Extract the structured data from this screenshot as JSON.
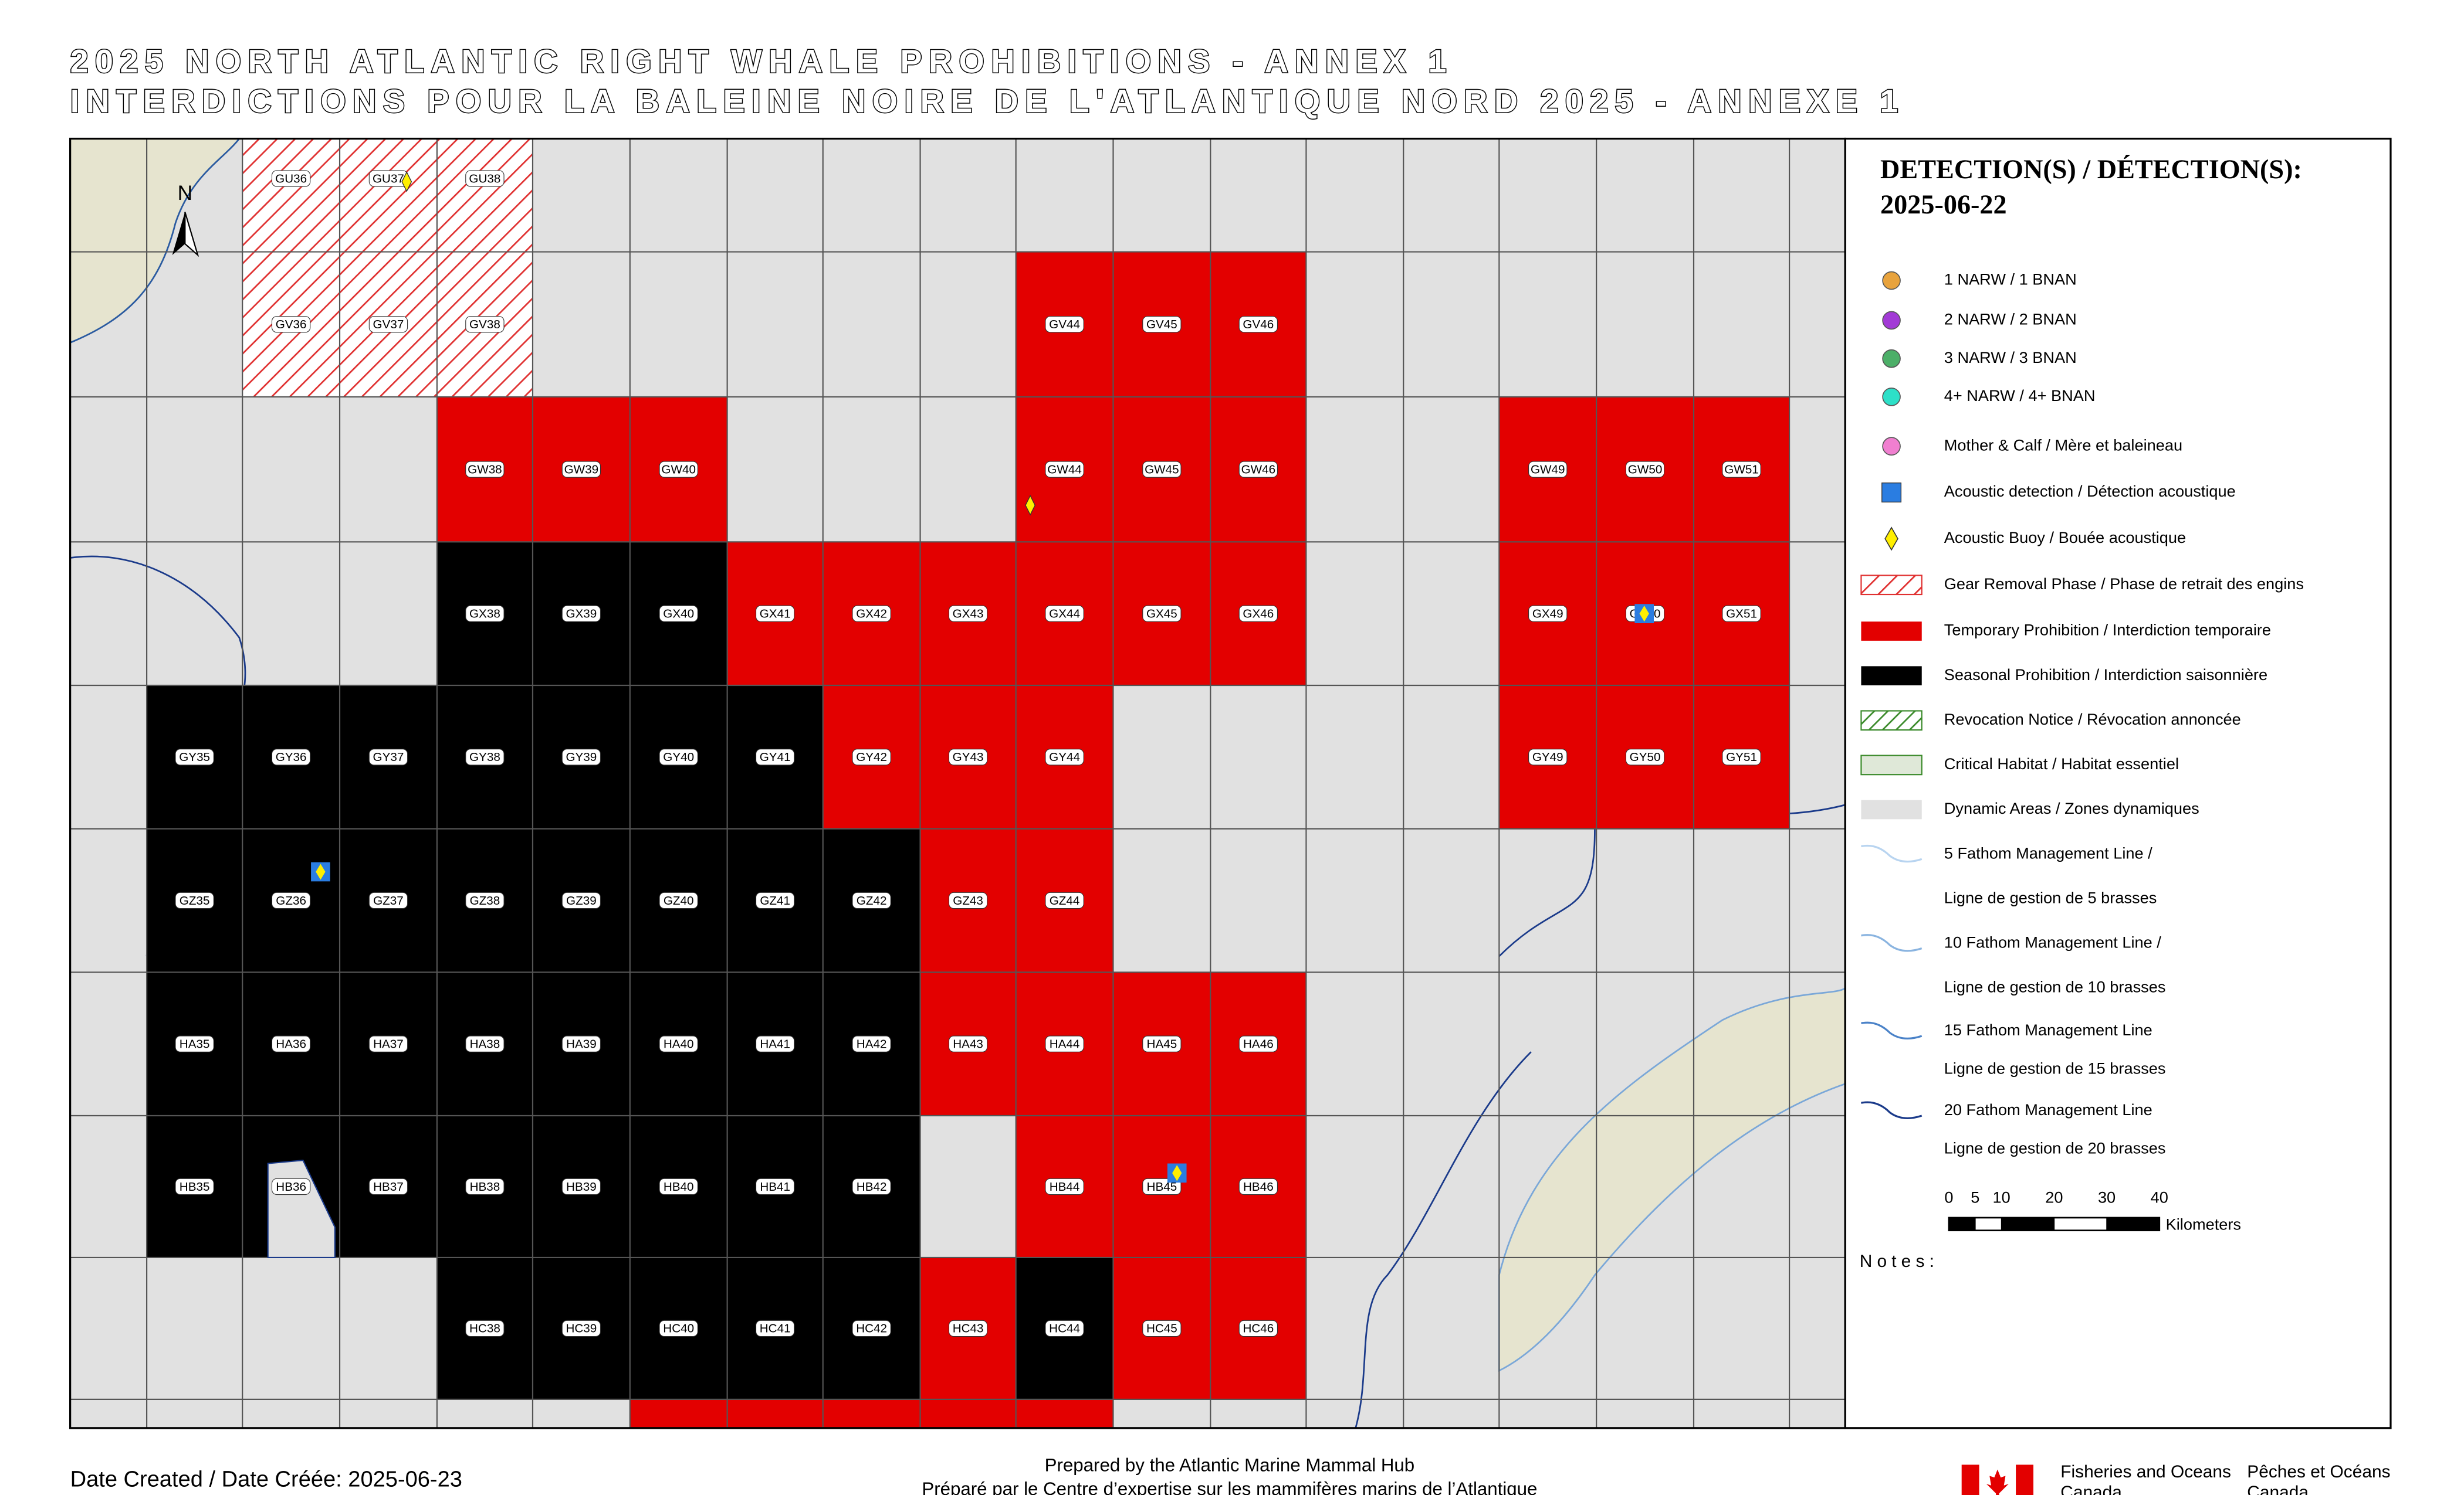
{
  "header": {
    "title_lines": [
      "2025 NORTH ATLANTIC RIGHT WHALE PROHIBITIONS - ANNEX 1",
      "INTERDICTIONS POUR LA BALEINE NOIRE DE L'ATLANTIQUE NORD 2025 - ANNEXE 1"
    ]
  },
  "map": {
    "north": "N"
  },
  "legend": {
    "title": [
      "DETECTION(S) / DÉTECTION(S):",
      "2025-06-22"
    ],
    "items": [
      {
        "lines": [
          "1 NARW / 1 BNAN"
        ]
      },
      {
        "lines": [
          "2 NARW / 2 BNAN"
        ]
      },
      {
        "lines": [
          "3 NARW / 3 BNAN"
        ]
      },
      {
        "lines": [
          "4+ NARW / 4+ BNAN"
        ]
      },
      {
        "lines": [
          "Mother & Calf / Mère et baleineau"
        ]
      },
      {
        "lines": [
          "Acoustic detection / Détection acoustique"
        ]
      },
      {
        "lines": [
          "Acoustic Buoy / Bouée acoustique"
        ]
      },
      {
        "lines": [
          "Gear Removal Phase / Phase de retrait des engins"
        ],
        "cells": [
          "GU36",
          "GU37",
          "GU38",
          "GV36",
          "GV37",
          "GV38"
        ]
      },
      {
        "lines": [
          "Temporary Prohibition / Interdiction temporaire"
        ],
        "cells": [
          "GV44",
          "GV45",
          "GV46",
          "GW38",
          "GW39",
          "GW40",
          "GW44",
          "GW45",
          "GW46",
          "GW49",
          "GW50",
          "GW51",
          "GX41",
          "GX42",
          "GX43",
          "GX44",
          "GX45",
          "GX46",
          "GX49",
          "GX50",
          "GX51",
          "GY42",
          "GY43",
          "GY44",
          "GY49",
          "GY50",
          "GY51",
          "GZ43",
          "GZ44",
          "HA43",
          "HA44",
          "HA45",
          "HA46",
          "HB44",
          "HB45",
          "HB46",
          "HC43",
          "HC45",
          "HC46"
        ]
      },
      {
        "lines": [
          "Seasonal Prohibition / Interdiction saisonnière"
        ],
        "cells": [
          "GX38",
          "GX39",
          "GX40",
          "GY35",
          "GY36",
          "GY37",
          "GY38",
          "GY39",
          "GY40",
          "GY41",
          "GZ35",
          "GZ36",
          "GZ37",
          "GZ38",
          "GZ39",
          "GZ40",
          "GZ41",
          "GZ42",
          "HA35",
          "HA36",
          "HA37",
          "HA38",
          "HA39",
          "HA40",
          "HA41",
          "HA42",
          "HB35",
          "HB36",
          "HB37",
          "HB38",
          "HB39",
          "HB40",
          "HB41",
          "HB42",
          "HC38",
          "HC39",
          "HC40",
          "HC41",
          "HC42",
          "HC44"
        ]
      },
      {
        "lines": [
          "Revocation Notice / Révocation annoncée"
        ]
      },
      {
        "lines": [
          "Critical Habitat / Habitat essentiel"
        ]
      },
      {
        "lines": [
          "Dynamic Areas / Zones dynamiques"
        ]
      },
      {
        "lines": [
          "5 Fathom Management Line /",
          "Ligne de gestion de 5 brasses"
        ]
      },
      {
        "lines": [
          "10 Fathom Management Line /",
          "Ligne de gestion de 10 brasses"
        ]
      },
      {
        "lines": [
          "15 Fathom Management Line",
          "Ligne de gestion de 15 brasses"
        ]
      },
      {
        "lines": [
          "20 Fathom Management Line",
          "Ligne de gestion de 20 brasses"
        ]
      }
    ]
  },
  "scale": {
    "ticks": [
      0,
      5,
      10,
      20,
      30,
      40
    ],
    "unit": "Kilometers"
  },
  "notes": "Notes:",
  "footer": {
    "date": "Date Created / Date Créée: 2025-06-23",
    "prepared": [
      "Prepared by the Atlantic Marine Mammal Hub",
      "Préparé par le Centre d’expertise sur les mammifères marins de l’Atlantique"
    ],
    "dept_en": [
      "Fisheries and Oceans",
      "Canada"
    ],
    "dept_fr": [
      "Pêches et Océans",
      "Canada"
    ]
  }
}
